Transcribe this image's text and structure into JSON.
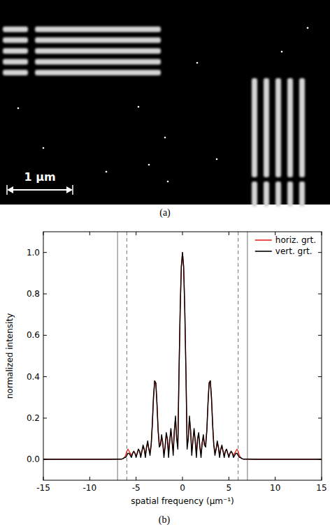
{
  "image_panel": {
    "label": "(a)",
    "scale_bar_label": "1 μm"
  },
  "chart_data": {
    "type": "line",
    "panel_label": "(b)",
    "x_label": "spatial frequency (μm⁻¹)",
    "y_label": "normalized intensity",
    "xlim": [
      -15,
      15
    ],
    "ylim": [
      -0.1,
      1.1
    ],
    "xticks": [
      -15,
      -10,
      -5,
      0,
      5,
      10,
      15
    ],
    "yticks": [
      {
        "value": 0,
        "label": "0.0"
      },
      {
        "value": 0.2,
        "label": "0.2"
      },
      {
        "value": 0.4,
        "label": "0.4"
      },
      {
        "value": 0.6,
        "label": "0.6"
      },
      {
        "value": 0.8,
        "label": "0.8"
      },
      {
        "value": 1,
        "label": "1.0"
      }
    ],
    "legend": "upper right",
    "grid": false,
    "vlines": [
      {
        "x": -7,
        "line_style": "solid"
      },
      {
        "x": -6,
        "line_style": "dashed"
      },
      {
        "x": 6,
        "line_style": "dashed"
      },
      {
        "x": 7,
        "line_style": "solid"
      }
    ],
    "x": [
      -15,
      -14,
      -13,
      -12,
      -11,
      -10,
      -9,
      -8,
      -7,
      -6.875,
      -6.75,
      -6.625,
      -6.5,
      -6.375,
      -6.25,
      -6.125,
      -6,
      -5.875,
      -5.75,
      -5.625,
      -5.5,
      -5.375,
      -5.25,
      -5.125,
      -5,
      -4.875,
      -4.75,
      -4.625,
      -4.5,
      -4.375,
      -4.25,
      -4.125,
      -4,
      -3.875,
      -3.75,
      -3.625,
      -3.5,
      -3.375,
      -3.25,
      -3.125,
      -3,
      -2.875,
      -2.75,
      -2.625,
      -2.5,
      -2.375,
      -2.25,
      -2.125,
      -2,
      -1.875,
      -1.75,
      -1.625,
      -1.5,
      -1.375,
      -1.25,
      -1.125,
      -1,
      -0.875,
      -0.75,
      -0.625,
      -0.5,
      -0.375,
      -0.25,
      -0.125,
      0,
      0.125,
      0.25,
      0.375,
      0.5,
      0.625,
      0.75,
      0.875,
      1,
      1.125,
      1.25,
      1.375,
      1.5,
      1.625,
      1.75,
      1.875,
      2,
      2.125,
      2.25,
      2.375,
      2.5,
      2.625,
      2.75,
      2.875,
      3,
      3.125,
      3.25,
      3.375,
      3.5,
      3.625,
      3.75,
      3.875,
      4,
      4.125,
      4.25,
      4.375,
      4.5,
      4.625,
      4.75,
      4.875,
      5,
      5.125,
      5.25,
      5.375,
      5.5,
      5.625,
      5.75,
      5.875,
      6,
      6.125,
      6.25,
      6.375,
      6.5,
      6.625,
      6.75,
      6.875,
      7,
      8,
      9,
      10,
      11,
      12,
      13,
      14,
      15
    ],
    "series": [
      {
        "name": "horiz. grt.",
        "color": "#e8271e",
        "line_style": "solid",
        "values": [
          0.001,
          0.001,
          0.001,
          0.001,
          0.001,
          0.001,
          0.001,
          0.001,
          0.002,
          0.002,
          0.002,
          0.002,
          0.003,
          0.005,
          0.01,
          0.02,
          0.04,
          0.05,
          0.04,
          0.03,
          0.02,
          0.03,
          0.04,
          0.03,
          0.02,
          0.03,
          0.05,
          0.04,
          0.02,
          0.04,
          0.06,
          0.05,
          0.02,
          0.06,
          0.08,
          0.05,
          0.04,
          0.07,
          0.17,
          0.3,
          0.38,
          0.37,
          0.27,
          0.14,
          0.08,
          0.07,
          0.11,
          0.08,
          0.03,
          0.06,
          0.12,
          0.1,
          0.03,
          0.09,
          0.14,
          0.09,
          0.04,
          0.14,
          0.2,
          0.1,
          0.07,
          0.42,
          0.72,
          0.93,
          1.0,
          0.93,
          0.72,
          0.42,
          0.07,
          0.1,
          0.2,
          0.14,
          0.04,
          0.09,
          0.14,
          0.09,
          0.03,
          0.1,
          0.12,
          0.06,
          0.03,
          0.08,
          0.11,
          0.07,
          0.08,
          0.14,
          0.27,
          0.37,
          0.38,
          0.3,
          0.17,
          0.07,
          0.04,
          0.05,
          0.08,
          0.06,
          0.02,
          0.05,
          0.06,
          0.04,
          0.02,
          0.04,
          0.05,
          0.03,
          0.02,
          0.03,
          0.04,
          0.03,
          0.02,
          0.03,
          0.04,
          0.05,
          0.04,
          0.02,
          0.01,
          0.005,
          0.003,
          0.002,
          0.002,
          0.002,
          0.002,
          0.001,
          0.001,
          0.001,
          0.001,
          0.001,
          0.001,
          0.001,
          0.001
        ]
      },
      {
        "name": "vert. grt.",
        "color": "#000000",
        "line_style": "solid",
        "values": [
          0.001,
          0.001,
          0.001,
          0.001,
          0.001,
          0.001,
          0.001,
          0.001,
          0.002,
          0.002,
          0.002,
          0.002,
          0.003,
          0.005,
          0.01,
          0.01,
          0.02,
          0.03,
          0.03,
          0.02,
          0.01,
          0.03,
          0.04,
          0.03,
          0.01,
          0.03,
          0.05,
          0.04,
          0.01,
          0.04,
          0.07,
          0.05,
          0.01,
          0.06,
          0.09,
          0.05,
          0.02,
          0.07,
          0.17,
          0.3,
          0.38,
          0.37,
          0.27,
          0.14,
          0.06,
          0.07,
          0.12,
          0.08,
          0.01,
          0.06,
          0.13,
          0.1,
          0.01,
          0.09,
          0.15,
          0.09,
          0.02,
          0.14,
          0.21,
          0.1,
          0.05,
          0.42,
          0.72,
          0.93,
          1.0,
          0.93,
          0.72,
          0.42,
          0.05,
          0.1,
          0.21,
          0.14,
          0.02,
          0.09,
          0.15,
          0.09,
          0.01,
          0.1,
          0.13,
          0.06,
          0.01,
          0.08,
          0.12,
          0.07,
          0.06,
          0.14,
          0.27,
          0.37,
          0.38,
          0.3,
          0.17,
          0.07,
          0.02,
          0.05,
          0.09,
          0.06,
          0.01,
          0.05,
          0.07,
          0.04,
          0.01,
          0.04,
          0.05,
          0.03,
          0.01,
          0.03,
          0.04,
          0.03,
          0.01,
          0.02,
          0.03,
          0.03,
          0.02,
          0.01,
          0.01,
          0.005,
          0.003,
          0.002,
          0.002,
          0.002,
          0.002,
          0.001,
          0.001,
          0.001,
          0.001,
          0.001,
          0.001,
          0.001,
          0.001
        ]
      }
    ]
  }
}
